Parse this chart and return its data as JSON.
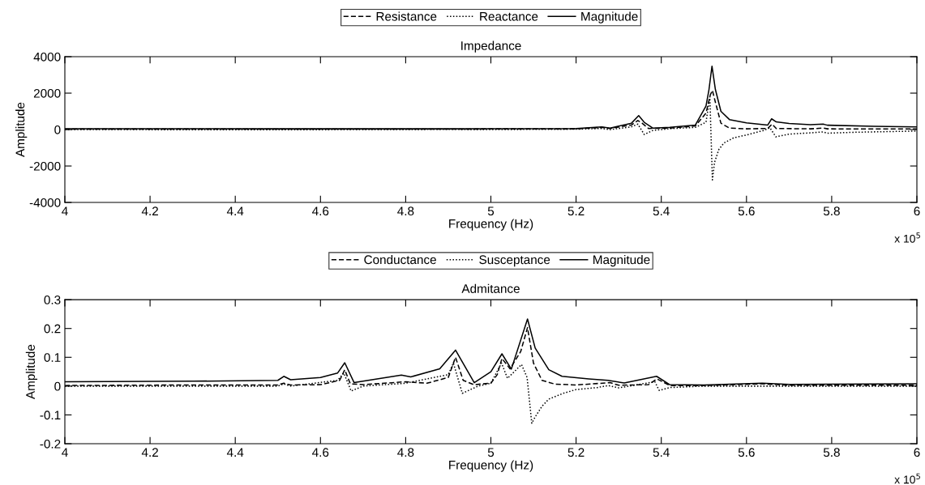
{
  "chart_data": [
    {
      "type": "line",
      "title": "Impedance",
      "xlabel": "Frequency (Hz)",
      "ylabel": "Amplitude",
      "annotations": [
        "x 10$^{5}$"
      ],
      "xlim": [
        4,
        6
      ],
      "xticks": [
        4,
        4.2,
        4.4,
        4.6,
        4.8,
        5,
        5.2,
        5.4,
        5.6,
        5.8,
        6
      ],
      "ylim": [
        -4000,
        4000
      ],
      "yticks": [
        -4000,
        -2000,
        0,
        2000,
        4000
      ],
      "grid": false,
      "legend": "top",
      "series": [
        {
          "name": "Resistance",
          "color": "#000000",
          "line_style": "dashed",
          "x": [
            4.0,
            4.5,
            4.9,
            5.0,
            5.2,
            5.26,
            5.28,
            5.33,
            5.345,
            5.355,
            5.37,
            5.42,
            5.48,
            5.505,
            5.515,
            5.52,
            5.527,
            5.54,
            5.56,
            5.6,
            5.65,
            5.66,
            5.67,
            5.75,
            5.78,
            5.79,
            6.0
          ],
          "values": [
            20,
            20,
            25,
            30,
            40,
            120,
            60,
            250,
            500,
            350,
            60,
            80,
            200,
            900,
            1900,
            2150,
            1500,
            350,
            80,
            40,
            60,
            300,
            60,
            40,
            80,
            40,
            30
          ]
        },
        {
          "name": "Reactance",
          "color": "#000000",
          "line_style": "dotted",
          "x": [
            4.0,
            4.5,
            4.9,
            5.0,
            5.2,
            5.26,
            5.28,
            5.33,
            5.345,
            5.36,
            5.38,
            5.42,
            5.48,
            5.505,
            5.514,
            5.52,
            5.525,
            5.535,
            5.547,
            5.57,
            5.6,
            5.64,
            5.655,
            5.669,
            5.7,
            5.75,
            5.78,
            5.79,
            5.85,
            6.0
          ],
          "values": [
            0,
            -10,
            10,
            0,
            20,
            60,
            0,
            150,
            300,
            -270,
            -50,
            50,
            120,
            400,
            1800,
            -2760,
            -1800,
            -1100,
            -740,
            -450,
            -300,
            -50,
            100,
            -400,
            -250,
            -180,
            -130,
            -200,
            -150,
            -80
          ]
        },
        {
          "name": "Magnitude",
          "color": "#000000",
          "line_style": "solid",
          "x": [
            4.0,
            4.5,
            4.9,
            5.0,
            5.2,
            5.26,
            5.28,
            5.33,
            5.347,
            5.36,
            5.38,
            5.42,
            5.48,
            5.505,
            5.512,
            5.519,
            5.527,
            5.54,
            5.56,
            5.6,
            5.65,
            5.659,
            5.67,
            5.7,
            5.75,
            5.78,
            5.79,
            5.9,
            6.0
          ],
          "values": [
            50,
            40,
            40,
            50,
            60,
            150,
            80,
            350,
            770,
            400,
            80,
            120,
            250,
            1300,
            2200,
            3480,
            2200,
            1000,
            550,
            370,
            250,
            590,
            420,
            330,
            270,
            300,
            240,
            180,
            150
          ]
        }
      ]
    },
    {
      "type": "line",
      "title": "Admitance",
      "xlabel": "Frequency (Hz)",
      "ylabel": "Amplitude",
      "annotations": [
        "x 10$^{5}$"
      ],
      "xlim": [
        4,
        6
      ],
      "xticks": [
        4,
        4.2,
        4.4,
        4.6,
        4.8,
        5,
        5.2,
        5.4,
        5.6,
        5.8,
        6
      ],
      "ylim": [
        -0.2,
        0.3
      ],
      "yticks": [
        -0.2,
        -0.1,
        0,
        0.1,
        0.2,
        0.3
      ],
      "grid": false,
      "legend": "top",
      "series": [
        {
          "name": "Conductance",
          "color": "#000000",
          "line_style": "dashed",
          "x": [
            4.0,
            4.3,
            4.5,
            4.514,
            4.53,
            4.6,
            4.645,
            4.657,
            4.67,
            4.7,
            4.8,
            4.85,
            4.9,
            4.917,
            4.935,
            4.96,
            5.0,
            5.015,
            5.026,
            5.045,
            5.07,
            5.086,
            5.1,
            5.12,
            5.15,
            5.2,
            5.28,
            5.3,
            5.37,
            5.39,
            5.42,
            5.5,
            5.637,
            5.7,
            6.0
          ],
          "values": [
            0.002,
            0.004,
            0.004,
            0.01,
            0.004,
            0.005,
            0.02,
            0.057,
            0.008,
            0.005,
            0.015,
            0.01,
            0.03,
            0.1,
            0.02,
            0.005,
            0.01,
            0.04,
            0.096,
            0.06,
            0.12,
            0.203,
            0.08,
            0.02,
            0.007,
            0.004,
            0.012,
            0.003,
            0.005,
            0.025,
            0.002,
            0.002,
            0.008,
            0.003,
            0.003
          ]
        },
        {
          "name": "Susceptance",
          "color": "#000000",
          "line_style": "dotted",
          "x": [
            4.0,
            4.5,
            4.514,
            4.53,
            4.64,
            4.655,
            4.672,
            4.7,
            4.8,
            4.9,
            4.912,
            4.933,
            4.97,
            5.0,
            5.025,
            5.039,
            5.072,
            5.085,
            5.096,
            5.104,
            5.12,
            5.136,
            5.17,
            5.2,
            5.25,
            5.275,
            5.3,
            5.385,
            5.395,
            5.42,
            5.5,
            6.0
          ],
          "values": [
            0,
            0,
            0.008,
            0,
            0.02,
            0.045,
            -0.017,
            0,
            0.01,
            0.04,
            0.08,
            -0.025,
            0,
            0.01,
            0.08,
            0.027,
            0.075,
            0.03,
            -0.129,
            -0.107,
            -0.07,
            -0.045,
            -0.025,
            -0.012,
            -0.005,
            0.002,
            -0.006,
            0.015,
            -0.015,
            -0.005,
            0,
            0
          ]
        },
        {
          "name": "Magnitude",
          "color": "#000000",
          "line_style": "solid",
          "x": [
            4.0,
            4.3,
            4.5,
            4.514,
            4.53,
            4.6,
            4.64,
            4.657,
            4.679,
            4.79,
            4.812,
            4.88,
            4.917,
            4.961,
            5.0,
            5.026,
            5.048,
            5.086,
            5.104,
            5.136,
            5.167,
            5.23,
            5.275,
            5.313,
            5.389,
            5.42,
            5.5,
            5.637,
            5.7,
            6.0
          ],
          "values": [
            0.015,
            0.017,
            0.02,
            0.034,
            0.022,
            0.03,
            0.045,
            0.081,
            0.012,
            0.038,
            0.032,
            0.06,
            0.125,
            0.012,
            0.05,
            0.112,
            0.059,
            0.233,
            0.132,
            0.057,
            0.034,
            0.025,
            0.02,
            0.011,
            0.034,
            0.005,
            0.004,
            0.01,
            0.006,
            0.008
          ]
        }
      ]
    }
  ]
}
